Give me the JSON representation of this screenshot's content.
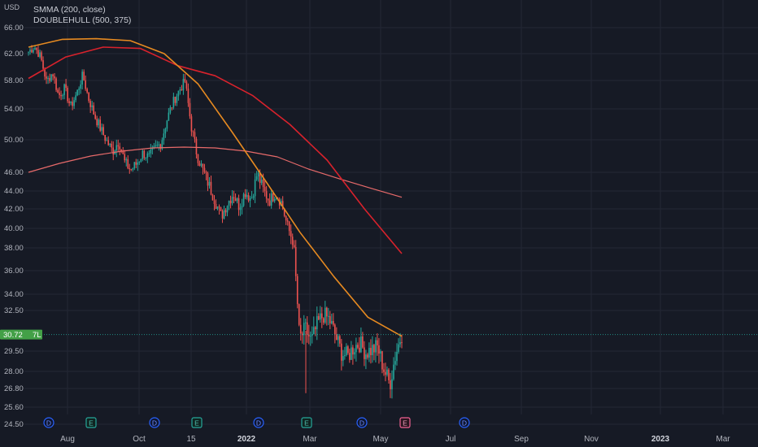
{
  "y_axis": {
    "unit": "USD",
    "labels": [
      "66.00",
      "62.00",
      "58.00",
      "54.00",
      "50.00",
      "46.00",
      "44.00",
      "42.00",
      "40.00",
      "38.00",
      "36.00",
      "34.00",
      "32.50",
      "29.50",
      "28.00",
      "26.80",
      "25.60",
      "24.50"
    ],
    "price_tag": "30.72",
    "price_tag_suffix": "7L"
  },
  "x_axis": {
    "labels": [
      "Aug",
      "Oct",
      "15",
      "2022",
      "Mar",
      "May",
      "Jul",
      "Sep",
      "Nov",
      "2023",
      "Mar"
    ]
  },
  "legend": {
    "line1": "SMMA (200, close)",
    "line2": "DOUBLEHULL (500, 375)"
  },
  "colors": {
    "background": "#161a25",
    "grid": "#242835",
    "up": "#26a69a",
    "down": "#ef5350",
    "smma": "#e76a6a",
    "hull_fast": "#e68a21",
    "hull_slow": "#d8222c",
    "tag": "#43a047",
    "axis_text": "#b2b5be"
  },
  "event_markers": [
    {
      "letter": "D",
      "kind": "dividend"
    },
    {
      "letter": "E",
      "kind": "earnings"
    },
    {
      "letter": "D",
      "kind": "dividend"
    },
    {
      "letter": "E",
      "kind": "earnings"
    },
    {
      "letter": "D",
      "kind": "dividend"
    },
    {
      "letter": "E",
      "kind": "earnings"
    },
    {
      "letter": "D",
      "kind": "dividend"
    },
    {
      "letter": "E",
      "kind": "earnings-upcoming"
    },
    {
      "letter": "D",
      "kind": "dividend"
    }
  ],
  "chart_data": {
    "type": "line",
    "price_anchors": [
      62.3,
      63.1,
      61.5,
      57.8,
      59.2,
      55.8,
      56.9,
      54.3,
      56.1,
      58.8,
      55.4,
      53.1,
      51.4,
      49.8,
      48.6,
      49.9,
      47.2,
      46.3,
      47.1,
      48.4,
      47.8,
      48.9,
      49.6,
      52.6,
      54.9,
      56.6,
      57.9,
      51.9,
      48.1,
      46.2,
      44.6,
      42.9,
      41.2,
      42.6,
      43.7,
      42.3,
      43.9,
      43.1,
      45.9,
      44.1,
      42.9,
      43.8,
      42.7,
      40.2,
      38.6,
      30.4,
      31.1,
      30.2,
      31.5,
      32.2,
      31.8,
      30.6,
      29.4,
      29.1,
      29.8,
      30.1,
      29.4,
      29.6,
      29.8,
      28.2,
      27.1,
      29.3,
      30.8
    ],
    "smma": [
      46.0,
      47.1,
      48.0,
      48.6,
      49.0,
      49.1,
      49.0,
      48.6,
      47.9,
      46.4,
      45.3,
      44.3,
      43.3
    ],
    "hull_fast": [
      63.0,
      64.2,
      64.3,
      64.0,
      62.0,
      57.5,
      51.0,
      45.0,
      39.6,
      35.5,
      32.0,
      30.6
    ],
    "hull_slow": [
      58.3,
      61.5,
      63.0,
      62.8,
      60.2,
      58.7,
      55.9,
      52.0,
      47.5,
      42.0,
      37.5
    ],
    "ylim": [
      24.0,
      67.2
    ]
  }
}
